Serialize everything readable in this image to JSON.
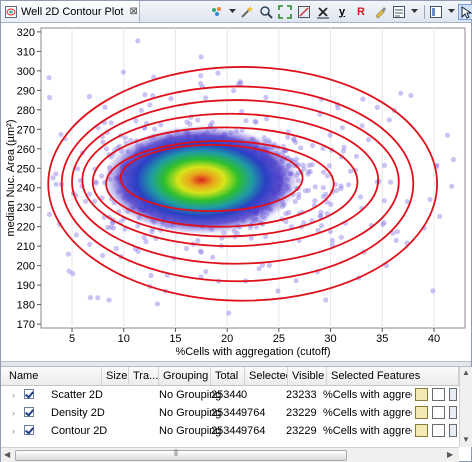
{
  "tab": {
    "title": "Well 2D Contour Plot",
    "close": "⊠"
  },
  "toolbar": {
    "label_y": "y",
    "label_r": "R"
  },
  "chart_data": {
    "type": "scatter",
    "title": "",
    "xlabel": "%Cells with aggregation (cutoff)",
    "ylabel": "median Nuc. Area (µm²)",
    "xlim": [
      2,
      43
    ],
    "ylim": [
      168,
      322
    ],
    "xticks": [
      5,
      10,
      15,
      20,
      25,
      30,
      35,
      40
    ],
    "yticks": [
      170,
      180,
      190,
      200,
      210,
      220,
      230,
      240,
      250,
      260,
      270,
      280,
      290,
      300,
      310,
      320
    ],
    "density_center": [
      17,
      244
    ],
    "contours": [
      {
        "cx": 18.5,
        "cy": 245,
        "rx": 8.8,
        "ry": 17
      },
      {
        "cx": 19.3,
        "cy": 242,
        "rx": 11.0,
        "ry": 22
      },
      {
        "cx": 19.8,
        "cy": 243,
        "rx": 12.8,
        "ry": 28
      },
      {
        "cx": 20.3,
        "cy": 244,
        "rx": 14.3,
        "ry": 34
      },
      {
        "cx": 20.8,
        "cy": 243,
        "rx": 15.8,
        "ry": 42
      },
      {
        "cx": 21.0,
        "cy": 242,
        "rx": 17.0,
        "ry": 50
      },
      {
        "cx": 21.5,
        "cy": 242,
        "rx": 18.8,
        "ry": 60
      }
    ]
  },
  "table": {
    "headers": [
      "Name",
      "Size",
      "Tra...",
      "Grouping",
      "Total",
      "Selected",
      "Visible",
      "Selected Features"
    ],
    "rows": [
      {
        "name": "Scatter 2D",
        "grouping": "No Grouping",
        "total": "25344",
        "selected": "0",
        "visible": "23233",
        "features": "%Cells with aggregation (c"
      },
      {
        "name": "Density 2D",
        "grouping": "No Grouping",
        "total": "25344",
        "selected": "9764",
        "visible": "23229",
        "features": "%Cells with aggregation (c"
      },
      {
        "name": "Contour 2D",
        "grouping": "No Grouping",
        "total": "25344",
        "selected": "9764",
        "visible": "23229",
        "features": "%Cells with aggregation (c"
      }
    ],
    "scroll_grip": "⦀"
  }
}
